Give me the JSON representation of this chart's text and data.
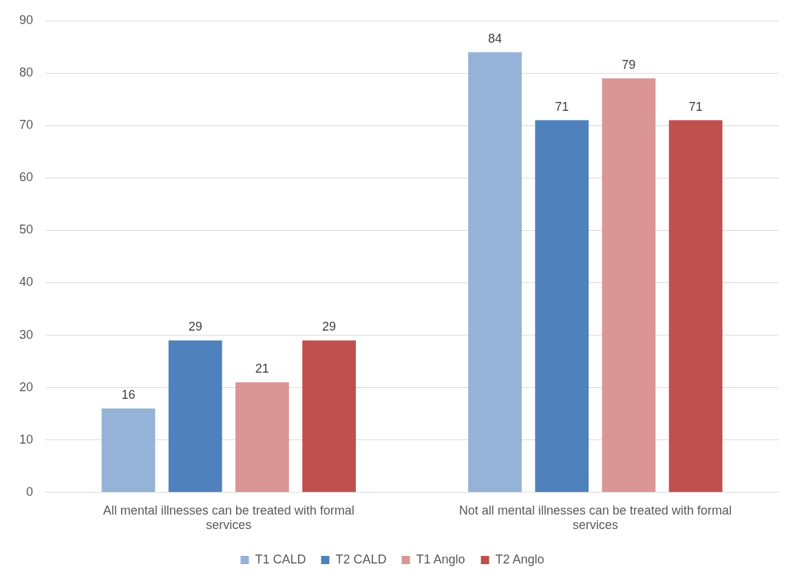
{
  "chart_data": {
    "type": "bar",
    "categories": [
      "All mental illnesses can be treated with formal services",
      "Not all mental illnesses can be treated with formal services"
    ],
    "series": [
      {
        "name": "T1 CALD",
        "color": "#95b3d7",
        "values": [
          16,
          84
        ]
      },
      {
        "name": "T2 CALD",
        "color": "#4f81bd",
        "values": [
          29,
          71
        ]
      },
      {
        "name": "T1 Anglo",
        "color": "#d99694",
        "values": [
          21,
          79
        ]
      },
      {
        "name": "T2 Anglo",
        "color": "#c0504d",
        "values": [
          29,
          71
        ]
      }
    ],
    "ylim": [
      0,
      90
    ],
    "yticks": [
      0,
      10,
      20,
      30,
      40,
      50,
      60,
      70,
      80,
      90
    ],
    "grid": "y",
    "legend": "bottom",
    "data_labels": true
  }
}
